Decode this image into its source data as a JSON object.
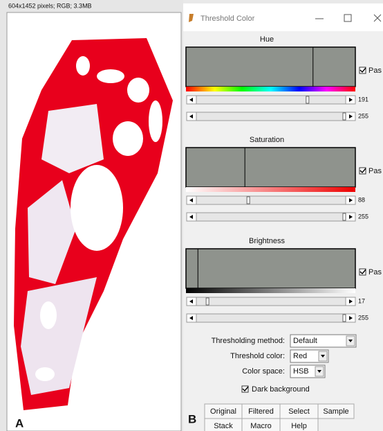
{
  "image_window": {
    "info": "604x1452 pixels; RGB; 3.3MB"
  },
  "panel_labels": {
    "left": "A",
    "right": "B"
  },
  "dialog": {
    "title": "Threshold Color",
    "sections": [
      {
        "name": "Hue",
        "pass": "Pas",
        "min": 191,
        "max": 255
      },
      {
        "name": "Saturation",
        "pass": "Pas",
        "min": 88,
        "max": 255
      },
      {
        "name": "Brightness",
        "pass": "Pas",
        "min": 17,
        "max": 255
      }
    ],
    "method_label": "Thresholding method:",
    "method": "Default",
    "color_label": "Threshold color:",
    "color": "Red",
    "space_label": "Color space:",
    "space": "HSB",
    "dark_background": "Dark background",
    "buttons": [
      [
        "Original",
        "Filtered",
        "Select",
        "Sample"
      ],
      [
        "Stack",
        "Macro",
        "Help"
      ]
    ]
  }
}
